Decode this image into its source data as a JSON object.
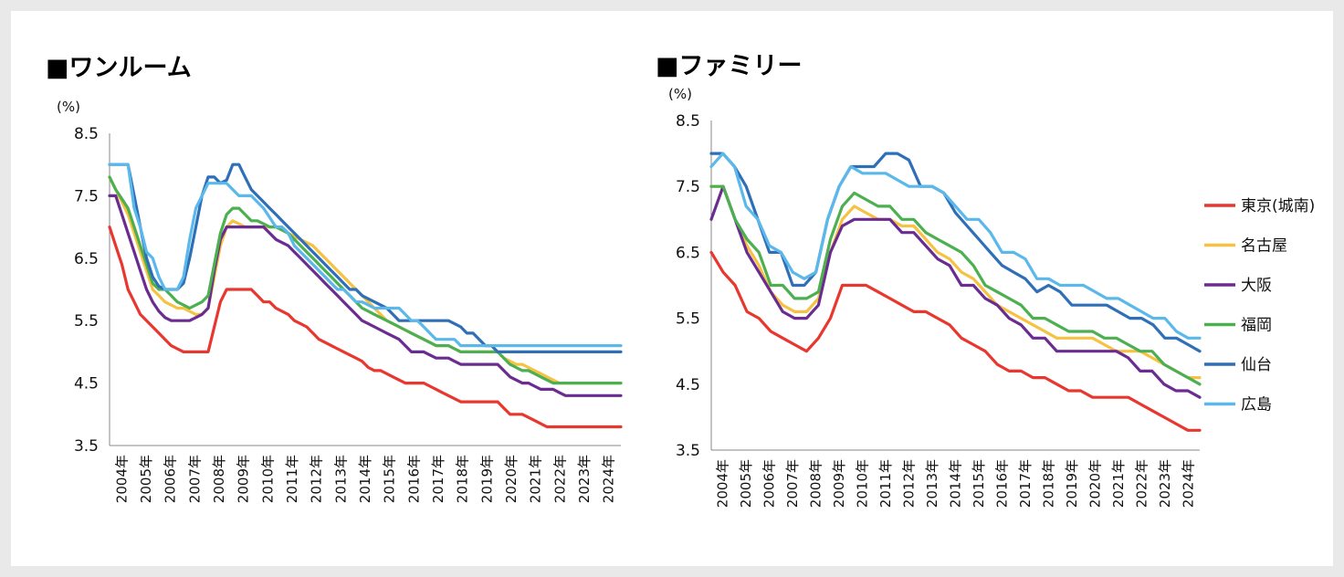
{
  "chart_data": [
    {
      "type": "line",
      "title": "■ワンルーム",
      "ylabel": "(%)",
      "ylim": [
        3.5,
        8.5
      ],
      "yticks": [
        "8.5",
        "7.5",
        "6.5",
        "5.5",
        "4.5",
        "3.5"
      ],
      "x": [
        "2004年",
        "2004年",
        "2004年",
        "2004年",
        "2005年",
        "2005年",
        "2005年",
        "2005年",
        "2006年",
        "2006年",
        "2006年",
        "2006年",
        "2007年",
        "2007年",
        "2007年",
        "2007年",
        "2008年",
        "2008年",
        "2008年",
        "2008年",
        "2009年",
        "2009年",
        "2009年",
        "2009年",
        "2010年",
        "2010年",
        "2010年",
        "2010年",
        "2011年",
        "2011年",
        "2011年",
        "2011年",
        "2012年",
        "2012年",
        "2012年",
        "2012年",
        "2013年",
        "2013年",
        "2013年",
        "2013年",
        "2014年",
        "2014年",
        "2014年",
        "2014年",
        "2015年",
        "2015年",
        "2015年",
        "2015年",
        "2016年",
        "2016年",
        "2016年",
        "2016年",
        "2017年",
        "2017年",
        "2017年",
        "2017年",
        "2018年",
        "2018年",
        "2018年",
        "2018年",
        "2019年",
        "2019年",
        "2019年",
        "2019年",
        "2020年",
        "2020年",
        "2020年",
        "2020年",
        "2021年",
        "2021年",
        "2021年",
        "2021年",
        "2022年",
        "2022年",
        "2022年",
        "2022年",
        "2023年",
        "2023年",
        "2023年",
        "2023年",
        "2024年",
        "2024年",
        "2024年",
        "2024年"
      ],
      "xtick_labels": [
        "2004年",
        "2005年",
        "2006年",
        "2007年",
        "2008年",
        "2009年",
        "2010年",
        "2011年",
        "2012年",
        "2013年",
        "2014年",
        "2015年",
        "2016年",
        "2017年",
        "2018年",
        "2019年",
        "2020年",
        "2021年",
        "2022年",
        "2023年",
        "2024年"
      ],
      "grid": false,
      "series": [
        {
          "name": "東京(城南)",
          "color": "#e8372e",
          "values": [
            7.0,
            6.7,
            6.4,
            6.0,
            5.8,
            5.6,
            5.5,
            5.4,
            5.3,
            5.2,
            5.1,
            5.05,
            5.0,
            5.0,
            5.0,
            5.0,
            5.0,
            5.4,
            5.8,
            6.0,
            6.0,
            6.0,
            6.0,
            6.0,
            5.9,
            5.8,
            5.8,
            5.7,
            5.65,
            5.6,
            5.5,
            5.45,
            5.4,
            5.3,
            5.2,
            5.15,
            5.1,
            5.05,
            5.0,
            4.95,
            4.9,
            4.85,
            4.75,
            4.7,
            4.7,
            4.65,
            4.6,
            4.55,
            4.5,
            4.5,
            4.5,
            4.5,
            4.45,
            4.4,
            4.35,
            4.3,
            4.25,
            4.2,
            4.2,
            4.2,
            4.2,
            4.2,
            4.2,
            4.2,
            4.1,
            4.0,
            4.0,
            4.0,
            3.95,
            3.9,
            3.85,
            3.8,
            3.8,
            3.8,
            3.8,
            3.8,
            3.8,
            3.8,
            3.8,
            3.8,
            3.8,
            3.8,
            3.8,
            3.8
          ]
        },
        {
          "name": "名古屋",
          "color": "#f5c242",
          "values": [
            7.8,
            7.6,
            7.4,
            7.2,
            6.9,
            6.6,
            6.3,
            6.0,
            5.9,
            5.8,
            5.75,
            5.7,
            5.7,
            5.65,
            5.6,
            5.6,
            5.7,
            6.2,
            6.7,
            7.0,
            7.1,
            7.05,
            7.0,
            7.0,
            7.0,
            7.0,
            7.0,
            7.0,
            6.95,
            6.9,
            6.85,
            6.8,
            6.75,
            6.7,
            6.6,
            6.5,
            6.4,
            6.3,
            6.2,
            6.1,
            6.0,
            5.9,
            5.8,
            5.7,
            5.6,
            5.5,
            5.45,
            5.4,
            5.35,
            5.3,
            5.25,
            5.2,
            5.15,
            5.1,
            5.1,
            5.1,
            5.05,
            5.0,
            5.0,
            5.0,
            5.0,
            5.0,
            5.0,
            5.0,
            4.9,
            4.85,
            4.8,
            4.8,
            4.75,
            4.7,
            4.65,
            4.6,
            4.55,
            4.5,
            4.5,
            4.5,
            4.5,
            4.5,
            4.5,
            4.5,
            4.5,
            4.5,
            4.5,
            4.5
          ]
        },
        {
          "name": "大阪",
          "color": "#6a2c91",
          "values": [
            7.5,
            7.5,
            7.2,
            6.9,
            6.6,
            6.3,
            6.0,
            5.8,
            5.65,
            5.55,
            5.5,
            5.5,
            5.5,
            5.5,
            5.55,
            5.6,
            5.7,
            6.3,
            6.8,
            7.0,
            7.0,
            7.0,
            7.0,
            7.0,
            7.0,
            7.0,
            6.9,
            6.8,
            6.75,
            6.7,
            6.6,
            6.5,
            6.4,
            6.3,
            6.2,
            6.1,
            6.0,
            5.9,
            5.8,
            5.7,
            5.6,
            5.5,
            5.45,
            5.4,
            5.35,
            5.3,
            5.25,
            5.2,
            5.1,
            5.0,
            5.0,
            5.0,
            4.95,
            4.9,
            4.9,
            4.9,
            4.85,
            4.8,
            4.8,
            4.8,
            4.8,
            4.8,
            4.8,
            4.8,
            4.7,
            4.6,
            4.55,
            4.5,
            4.5,
            4.45,
            4.4,
            4.4,
            4.4,
            4.35,
            4.3,
            4.3,
            4.3,
            4.3,
            4.3,
            4.3,
            4.3,
            4.3,
            4.3,
            4.3
          ]
        },
        {
          "name": "福岡",
          "color": "#4caf50",
          "values": [
            7.8,
            7.6,
            7.45,
            7.3,
            7.0,
            6.7,
            6.4,
            6.1,
            6.0,
            6.0,
            5.9,
            5.8,
            5.75,
            5.7,
            5.75,
            5.8,
            5.9,
            6.4,
            6.9,
            7.2,
            7.3,
            7.3,
            7.2,
            7.1,
            7.1,
            7.05,
            7.0,
            7.0,
            6.95,
            6.9,
            6.8,
            6.7,
            6.6,
            6.5,
            6.4,
            6.3,
            6.2,
            6.1,
            6.0,
            5.9,
            5.8,
            5.7,
            5.65,
            5.6,
            5.55,
            5.5,
            5.45,
            5.4,
            5.35,
            5.3,
            5.25,
            5.2,
            5.15,
            5.1,
            5.1,
            5.1,
            5.05,
            5.0,
            5.0,
            5.0,
            5.0,
            5.0,
            5.0,
            5.0,
            4.9,
            4.8,
            4.75,
            4.7,
            4.7,
            4.65,
            4.6,
            4.55,
            4.5,
            4.5,
            4.5,
            4.5,
            4.5,
            4.5,
            4.5,
            4.5,
            4.5,
            4.5,
            4.5,
            4.5
          ]
        },
        {
          "name": "仙台",
          "color": "#2e6fb7",
          "values": [
            8.0,
            8.0,
            8.0,
            8.0,
            7.5,
            7.0,
            6.5,
            6.2,
            6.05,
            6.0,
            6.0,
            6.0,
            6.1,
            6.5,
            7.0,
            7.5,
            7.8,
            7.8,
            7.7,
            7.75,
            8.0,
            8.0,
            7.8,
            7.6,
            7.5,
            7.4,
            7.3,
            7.2,
            7.1,
            7.0,
            6.9,
            6.8,
            6.7,
            6.6,
            6.5,
            6.4,
            6.3,
            6.2,
            6.1,
            6.0,
            6.0,
            5.9,
            5.85,
            5.8,
            5.75,
            5.7,
            5.6,
            5.5,
            5.5,
            5.5,
            5.5,
            5.5,
            5.5,
            5.5,
            5.5,
            5.5,
            5.45,
            5.4,
            5.3,
            5.3,
            5.2,
            5.1,
            5.1,
            5.0,
            5.0,
            5.0,
            5.0,
            5.0,
            5.0,
            5.0,
            5.0,
            5.0,
            5.0,
            5.0,
            5.0,
            5.0,
            5.0,
            5.0,
            5.0,
            5.0,
            5.0,
            5.0,
            5.0,
            5.0
          ]
        },
        {
          "name": "広島",
          "color": "#5bb8ea",
          "values": [
            8.0,
            8.0,
            8.0,
            8.0,
            7.3,
            7.0,
            6.6,
            6.5,
            6.2,
            6.0,
            6.0,
            6.0,
            6.2,
            6.8,
            7.3,
            7.5,
            7.7,
            7.7,
            7.7,
            7.7,
            7.6,
            7.5,
            7.5,
            7.5,
            7.4,
            7.3,
            7.15,
            7.0,
            7.0,
            6.9,
            6.7,
            6.6,
            6.5,
            6.4,
            6.3,
            6.2,
            6.1,
            6.0,
            6.0,
            5.9,
            5.8,
            5.8,
            5.75,
            5.7,
            5.7,
            5.7,
            5.7,
            5.7,
            5.6,
            5.5,
            5.5,
            5.4,
            5.3,
            5.2,
            5.2,
            5.2,
            5.2,
            5.1,
            5.1,
            5.1,
            5.1,
            5.1,
            5.1,
            5.1,
            5.1,
            5.1,
            5.1,
            5.1,
            5.1,
            5.1,
            5.1,
            5.1,
            5.1,
            5.1,
            5.1,
            5.1,
            5.1,
            5.1,
            5.1,
            5.1,
            5.1,
            5.1,
            5.1,
            5.1
          ]
        }
      ]
    },
    {
      "type": "line",
      "title": "■ファミリー",
      "ylabel": "(%)",
      "ylim": [
        3.5,
        8.5
      ],
      "yticks": [
        "8.5",
        "7.5",
        "6.5",
        "5.5",
        "4.5",
        "3.5"
      ],
      "xtick_labels": [
        "2004年",
        "2005年",
        "2006年",
        "2007年",
        "2008年",
        "2009年",
        "2010年",
        "2011年",
        "2012年",
        "2013年",
        "2014年",
        "2015年",
        "2016年",
        "2017年",
        "2018年",
        "2019年",
        "2020年",
        "2021年",
        "2022年",
        "2023年",
        "2024年"
      ],
      "grid": false,
      "legend": "right",
      "series": [
        {
          "name": "東京(城南)",
          "color": "#e8372e",
          "values": [
            6.5,
            6.2,
            6.0,
            5.6,
            5.5,
            5.3,
            5.2,
            5.1,
            5.0,
            5.2,
            5.5,
            6.0,
            6.0,
            6.0,
            5.9,
            5.8,
            5.7,
            5.6,
            5.6,
            5.5,
            5.4,
            5.2,
            5.1,
            5.0,
            4.8,
            4.7,
            4.7,
            4.6,
            4.6,
            4.5,
            4.4,
            4.4,
            4.3,
            4.3,
            4.3,
            4.3,
            4.2,
            4.1,
            4.0,
            3.9,
            3.8,
            3.8
          ]
        },
        {
          "name": "名古屋",
          "color": "#f5c242",
          "values": [
            7.5,
            7.5,
            7.0,
            6.6,
            6.3,
            5.9,
            5.7,
            5.6,
            5.6,
            5.8,
            6.5,
            7.0,
            7.2,
            7.1,
            7.0,
            7.0,
            6.9,
            6.9,
            6.7,
            6.5,
            6.4,
            6.2,
            6.1,
            5.9,
            5.7,
            5.6,
            5.5,
            5.4,
            5.3,
            5.2,
            5.2,
            5.2,
            5.2,
            5.1,
            5.0,
            5.0,
            5.0,
            4.9,
            4.8,
            4.7,
            4.6,
            4.6
          ]
        },
        {
          "name": "大阪",
          "color": "#6a2c91",
          "values": [
            7.0,
            7.5,
            7.0,
            6.5,
            6.2,
            5.9,
            5.6,
            5.5,
            5.5,
            5.7,
            6.5,
            6.9,
            7.0,
            7.0,
            7.0,
            7.0,
            6.8,
            6.8,
            6.6,
            6.4,
            6.3,
            6.0,
            6.0,
            5.8,
            5.7,
            5.5,
            5.4,
            5.2,
            5.2,
            5.0,
            5.0,
            5.0,
            5.0,
            5.0,
            5.0,
            4.9,
            4.7,
            4.7,
            4.5,
            4.4,
            4.4,
            4.3
          ]
        },
        {
          "name": "福岡",
          "color": "#4caf50",
          "values": [
            7.5,
            7.5,
            7.0,
            6.7,
            6.5,
            6.0,
            6.0,
            5.8,
            5.8,
            5.9,
            6.7,
            7.2,
            7.4,
            7.3,
            7.2,
            7.2,
            7.0,
            7.0,
            6.8,
            6.7,
            6.6,
            6.5,
            6.3,
            6.0,
            5.9,
            5.8,
            5.7,
            5.5,
            5.5,
            5.4,
            5.3,
            5.3,
            5.3,
            5.2,
            5.2,
            5.1,
            5.0,
            5.0,
            4.8,
            4.7,
            4.6,
            4.5
          ]
        },
        {
          "name": "仙台",
          "color": "#2e6fb7",
          "values": [
            8.0,
            8.0,
            7.8,
            7.5,
            7.0,
            6.5,
            6.5,
            6.0,
            6.0,
            6.2,
            7.0,
            7.5,
            7.8,
            7.8,
            7.8,
            8.0,
            8.0,
            7.9,
            7.5,
            7.5,
            7.4,
            7.1,
            6.9,
            6.7,
            6.5,
            6.3,
            6.2,
            6.1,
            5.9,
            6.0,
            5.9,
            5.7,
            5.7,
            5.7,
            5.7,
            5.6,
            5.5,
            5.5,
            5.4,
            5.2,
            5.2,
            5.1,
            5.0
          ]
        },
        {
          "name": "広島",
          "color": "#5bb8ea",
          "values": [
            7.8,
            8.0,
            7.8,
            7.2,
            7.0,
            6.6,
            6.5,
            6.2,
            6.1,
            6.2,
            7.0,
            7.5,
            7.8,
            7.7,
            7.7,
            7.7,
            7.6,
            7.5,
            7.5,
            7.5,
            7.4,
            7.2,
            7.0,
            7.0,
            6.8,
            6.5,
            6.5,
            6.4,
            6.1,
            6.1,
            6.0,
            6.0,
            6.0,
            5.9,
            5.8,
            5.8,
            5.7,
            5.6,
            5.5,
            5.5,
            5.3,
            5.2,
            5.2
          ]
        }
      ]
    }
  ]
}
